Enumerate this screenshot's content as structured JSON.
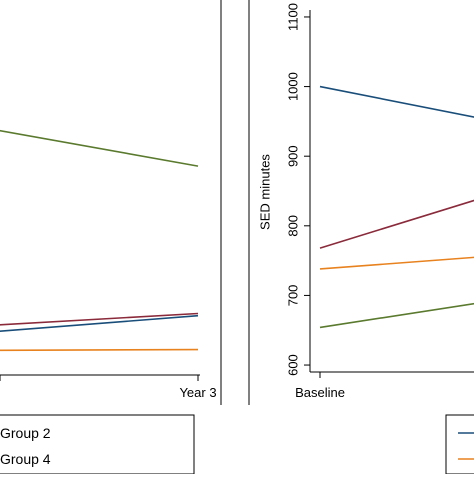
{
  "colors": {
    "group1": "#1a4e7a",
    "group2": "#8a2a3a",
    "group3": "#e8821e",
    "group4": "#5a7a2e"
  },
  "chart_data": [
    {
      "id": "left",
      "type": "line",
      "x_ticks": [
        "Year 3"
      ],
      "x_unit_positions": [
        1
      ],
      "series": [
        {
          "color_key": "group1",
          "x": [
            -0.02,
            1
          ],
          "y": [
            651.0,
            673.0
          ]
        },
        {
          "color_key": "group2",
          "x": [
            -0.02,
            1
          ],
          "y": [
            660.0,
            676.0
          ]
        },
        {
          "color_key": "group3",
          "x": [
            -0.02,
            1
          ],
          "y": [
            625.0,
            626.0
          ]
        },
        {
          "color_key": "group4",
          "x": [
            -0.02,
            1
          ],
          "y": [
            930.0,
            880.0
          ]
        }
      ],
      "ylim": [
        595,
        1110
      ],
      "legend": {
        "position": "bottom",
        "entries": [
          {
            "label": "Group 2",
            "color_key": "group2"
          },
          {
            "label": "Group 4",
            "color_key": "group4"
          }
        ]
      }
    },
    {
      "id": "right",
      "type": "line",
      "ylabel": "SED minutes",
      "y_ticks": [
        600,
        700,
        800,
        900,
        1000,
        1100
      ],
      "x_ticks": [
        "Baseline"
      ],
      "x_unit_positions": [
        0
      ],
      "ylim": [
        590,
        1110
      ],
      "series": [
        {
          "color_key": "group1",
          "x": [
            0,
            0.95
          ],
          "y": [
            1000,
            950
          ]
        },
        {
          "color_key": "group2",
          "x": [
            0,
            0.95
          ],
          "y": [
            768,
            846
          ]
        },
        {
          "color_key": "group3",
          "x": [
            0,
            0.95
          ],
          "y": [
            738,
            757
          ]
        },
        {
          "color_key": "group4",
          "x": [
            0,
            0.95
          ],
          "y": [
            654,
            693
          ]
        }
      ],
      "legend": {
        "position": "bottom",
        "entries": [
          {
            "label": "",
            "color_key": "group1"
          },
          {
            "label": "",
            "color_key": "group3"
          }
        ]
      }
    }
  ]
}
